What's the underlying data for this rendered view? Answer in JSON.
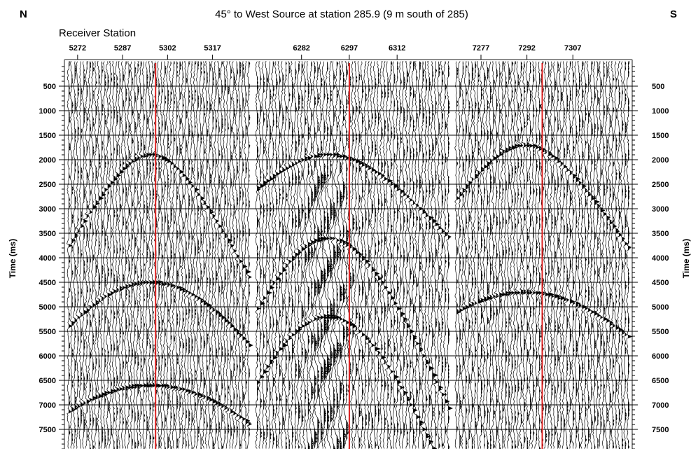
{
  "chart_data": {
    "type": "seismic_wiggle_trace",
    "title": "45° to West Source at station 285.9 (9 m south of 285)",
    "corner_left": "N",
    "corner_right": "S",
    "xlabel": "Receiver Station",
    "ylabel": "Time (ms)",
    "y_axis": {
      "min": 0,
      "max": 7900,
      "major_step": 500,
      "minor_step": 100,
      "inverted": true,
      "tick_labels": [
        500,
        1000,
        1500,
        2000,
        2500,
        3000,
        3500,
        4000,
        4500,
        5000,
        5500,
        6000,
        6500,
        7000,
        7500
      ]
    },
    "grid": true,
    "marker_color": "#dd2222",
    "panels": [
      {
        "station_start": 5269,
        "station_end": 5329,
        "ticks": [
          5272,
          5287,
          5302,
          5317
        ],
        "marker_station": 5298,
        "events": [
          {
            "kind": "hyperbola",
            "apex_station": 5296,
            "apex_ms": 1900,
            "slope_ms_per_station": 120
          },
          {
            "kind": "hyperbola",
            "apex_station": 5296,
            "apex_ms": 4500,
            "slope_ms_per_station": 110
          },
          {
            "kind": "hyperbola",
            "apex_station": 5296,
            "apex_ms": 6600,
            "slope_ms_per_station": 100
          }
        ]
      },
      {
        "station_start": 6268,
        "station_end": 6328,
        "ticks": [
          6282,
          6297,
          6312
        ],
        "marker_station": 6297,
        "events": [
          {
            "kind": "hyperbola",
            "apex_station": 6290,
            "apex_ms": 1900,
            "slope_ms_per_station": 80
          },
          {
            "kind": "hyperbola",
            "apex_station": 6290,
            "apex_ms": 3600,
            "slope_ms_per_station": 160
          },
          {
            "kind": "hyperbola",
            "apex_station": 6290,
            "apex_ms": 5200,
            "slope_ms_per_station": 180
          }
        ]
      },
      {
        "station_start": 7269,
        "station_end": 7325,
        "ticks": [
          7277,
          7292,
          7307
        ],
        "marker_station": 7297,
        "events": [
          {
            "kind": "hyperbola",
            "apex_station": 7291,
            "apex_ms": 1700,
            "slope_ms_per_station": 100
          },
          {
            "kind": "hyperbola",
            "apex_station": 7291,
            "apex_ms": 4700,
            "slope_ms_per_station": 90
          }
        ]
      }
    ]
  }
}
